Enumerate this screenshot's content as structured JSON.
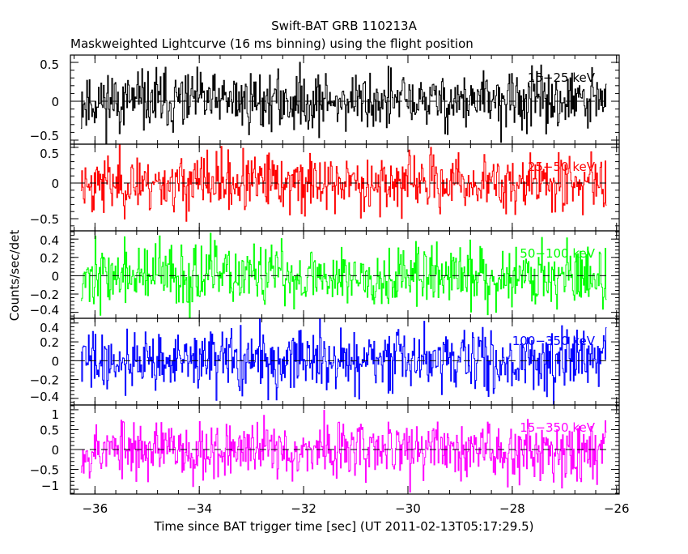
{
  "chart_data": {
    "type": "line",
    "title": "Swift-BAT GRB 110213A",
    "subtitle": "Maskweighted Lightcurve (16 ms binning) using the flight position",
    "xlabel": "Time since BAT trigger time [sec] (UT 2011-02-13T05:17:29.5)",
    "ylabel": "Counts/sec/det",
    "xlim": [
      -36.47,
      -25.95
    ],
    "xticks": [
      -36,
      -34,
      -32,
      -30,
      -28,
      -26
    ],
    "xtick_labels": [
      "−36",
      "−34",
      "−32",
      "−30",
      "−28",
      "−26"
    ],
    "bin_size_sec": 0.016,
    "data_start": -36.27,
    "data_end": -26.2,
    "grid": false,
    "panels": [
      {
        "name": "15-25 keV",
        "label": "15−25 keV",
        "color": "#000000",
        "ylim": [
          -0.552,
          0.594
        ],
        "yticks": [
          -0.5,
          0,
          0.5
        ],
        "ytick_labels": [
          "−0.5",
          "0",
          "0.5"
        ],
        "noise_sigma": 0.19,
        "seed": 11
      },
      {
        "name": "25-50 keV",
        "label": "25−50 keV",
        "color": "#ff0000",
        "ylim": [
          -0.67,
          0.545
        ],
        "yticks": [
          -0.5,
          0,
          0.5
        ],
        "ytick_labels": [
          "−0.5",
          "0",
          "0.5"
        ],
        "noise_sigma": 0.2,
        "seed": 23
      },
      {
        "name": "50-100 keV",
        "label": "50−100 keV",
        "color": "#00ff00",
        "ylim": [
          -0.465,
          0.49
        ],
        "yticks": [
          -0.4,
          -0.2,
          0,
          0.2,
          0.4
        ],
        "ytick_labels": [
          "−0.4",
          "−0.2",
          "0",
          "0.2",
          "0.4"
        ],
        "noise_sigma": 0.17,
        "seed": 37
      },
      {
        "name": "100-350 keV",
        "label": "100−350 keV",
        "color": "#0000ff",
        "ylim": [
          -0.47,
          0.45
        ],
        "yticks": [
          -0.4,
          -0.2,
          0,
          0.2,
          0.4
        ],
        "ytick_labels": [
          "−0.4",
          "−0.2",
          "0",
          "0.2",
          "0.4"
        ],
        "noise_sigma": 0.16,
        "seed": 41
      },
      {
        "name": "15-350 keV",
        "label": "15−350 keV",
        "color": "#ff00ff",
        "ylim": [
          -1.12,
          1.12
        ],
        "yticks": [
          -1,
          -0.5,
          0,
          0.5,
          1
        ],
        "ytick_labels": [
          "−1",
          "−0.5",
          "0",
          "0.5",
          "1"
        ],
        "noise_sigma": 0.36,
        "seed": 53
      }
    ]
  }
}
